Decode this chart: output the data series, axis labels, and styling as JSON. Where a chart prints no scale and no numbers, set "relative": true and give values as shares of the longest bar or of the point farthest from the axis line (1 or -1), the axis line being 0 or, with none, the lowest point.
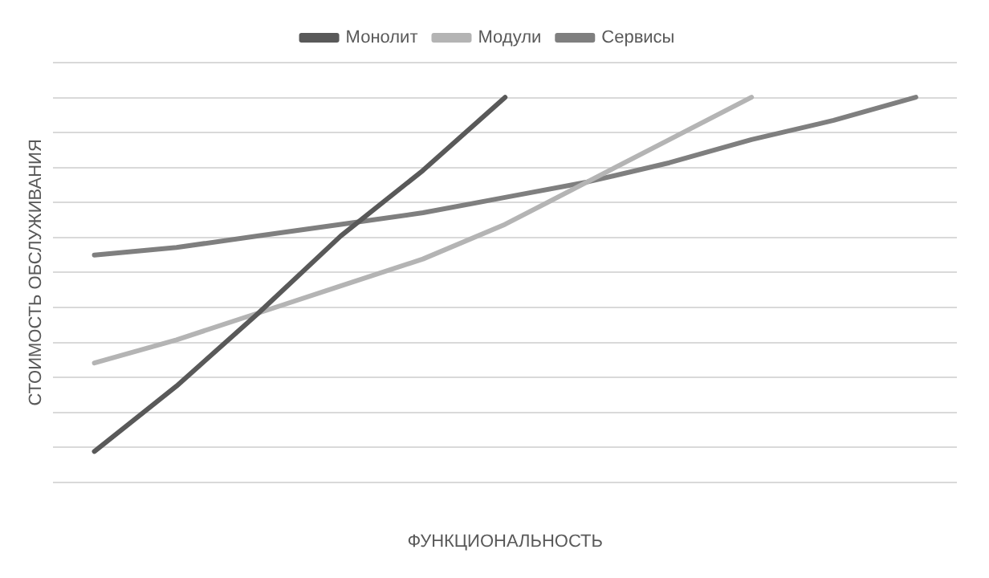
{
  "chart_data": {
    "type": "line",
    "relative": true,
    "xlabel": "ФУНКЦИОНАЛЬНОСТЬ",
    "ylabel": "СТОИМОСТЬ ОБСЛУЖИВАНИЯ",
    "categories": [
      null,
      null,
      null,
      null,
      null,
      null,
      null,
      null,
      null,
      null,
      null
    ],
    "grid": "y",
    "legend": "top",
    "marker": "none",
    "line_style": "solid",
    "series": [
      {
        "name": "Монолит",
        "color": "#595959",
        "values": [
          0.08,
          0.25,
          0.44,
          0.64,
          0.81,
          1,
          null,
          null,
          null,
          null,
          null
        ]
      },
      {
        "name": "Модули",
        "color": "#b4b4b4",
        "values": [
          0.31,
          0.37,
          0.44,
          0.51,
          0.58,
          0.67,
          0.78,
          0.89,
          1,
          null,
          null
        ]
      },
      {
        "name": "Сервисы",
        "color": "#7f7f7f",
        "values": [
          0.59,
          0.61,
          0.64,
          0.67,
          0.7,
          0.74,
          0.78,
          0.83,
          0.89,
          0.94,
          1
        ]
      }
    ]
  }
}
